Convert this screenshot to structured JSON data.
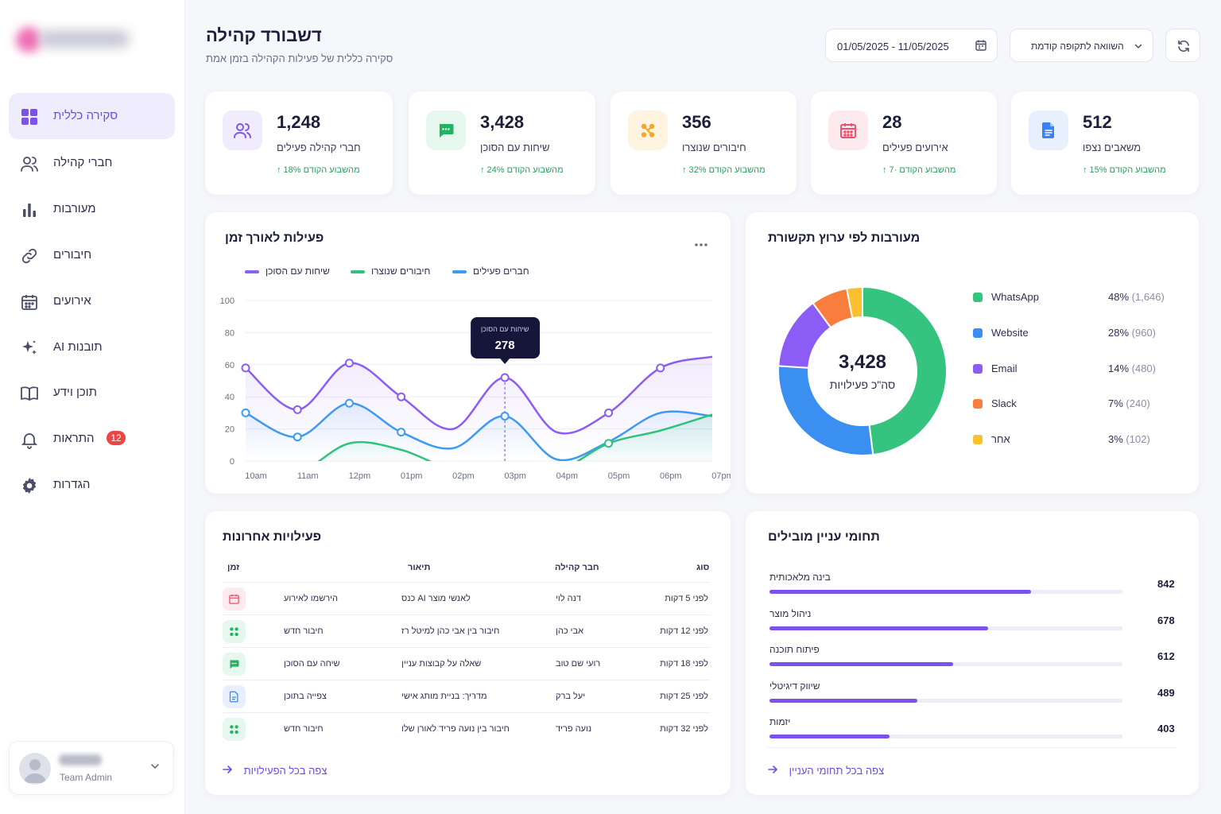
{
  "sidebar": {
    "items": [
      {
        "label": "סקירה כללית",
        "icon": "grid-icon",
        "active": true
      },
      {
        "label": "חברי קהילה",
        "icon": "users-icon"
      },
      {
        "label": "מעורבות",
        "icon": "bar-chart-icon"
      },
      {
        "label": "חיבורים",
        "icon": "link-icon"
      },
      {
        "label": "אירועים",
        "icon": "calendar-icon"
      },
      {
        "label": "AI תובנות",
        "icon": "sparkles-icon"
      },
      {
        "label": "תוכן וידע",
        "icon": "book-icon"
      },
      {
        "label": "התראות",
        "icon": "bell-icon",
        "badge": "12"
      },
      {
        "label": "הגדרות",
        "icon": "gear-icon"
      }
    ],
    "user": {
      "role": "Team Admin"
    }
  },
  "header": {
    "title": "דשבורד קהילה",
    "subtitle": "סקירה כללית של פעילות הקהילה בזמן אמת",
    "date_range": "01/05/2025 - 11/05/2025",
    "compare_label": "השוואה לתקופה קודמת"
  },
  "stats": [
    {
      "value": "1,248",
      "label": "חברי קהילה פעילים",
      "trend": "↑ 18% מהשבוע הקודם",
      "color": "#7c52ea",
      "bg": "#f0ebfe",
      "icon": "users-icon"
    },
    {
      "value": "3,428",
      "label": "שיחות עם הסוכן",
      "trend": "↑ 24% מהשבוע הקודם",
      "color": "#22b264",
      "bg": "#e6f7ee",
      "icon": "chat-icon"
    },
    {
      "value": "356",
      "label": "חיבורים שנוצרו",
      "trend": "↑ 32% מהשבוע הקודם",
      "color": "#f5a623",
      "bg": "#fff4e0",
      "icon": "connections-icon"
    },
    {
      "value": "28",
      "label": "אירועים פעילים",
      "trend": "↑ 7· מהשבוע הקודם",
      "color": "#ef4f6b",
      "bg": "#fdeaee",
      "icon": "calendar-icon"
    },
    {
      "value": "512",
      "label": "משאבים נצפו",
      "trend": "↑ 15% מהשבוע הקודם",
      "color": "#3b82f6",
      "bg": "#e8f0fe",
      "icon": "document-icon"
    }
  ],
  "activity": {
    "title": "פעילות לאורך זמן",
    "tooltip": {
      "label": "שיחות עם הסוכן",
      "value": "278"
    }
  },
  "chart_data": [
    {
      "type": "line",
      "title": "פעילות לאורך זמן",
      "x": [
        "10am",
        "11am",
        "12pm",
        "01pm",
        "02pm",
        "03pm",
        "04pm",
        "05pm",
        "06pm",
        "07pm"
      ],
      "y_ticks": [
        "0",
        "20",
        "40",
        "60",
        "80",
        "100"
      ],
      "ylim": [
        0,
        100
      ],
      "grid": true,
      "legend_position": "top",
      "series": [
        {
          "name": "שיחות עם הסוכן",
          "color": "#8b5cf6",
          "values": [
            58,
            32,
            61,
            40,
            20,
            52,
            18,
            30,
            58,
            65
          ]
        },
        {
          "name": "חיבורים שנוצרו",
          "color": "#2fc27a",
          "values": [
            -10,
            -8,
            11,
            7,
            -5,
            -3,
            -6,
            11,
            19,
            29
          ]
        },
        {
          "name": "חברים פעילים",
          "color": "#3b9cf2",
          "values": [
            30,
            15,
            36,
            18,
            8,
            28,
            1,
            12,
            30,
            28
          ]
        }
      ]
    },
    {
      "type": "pie",
      "title": "מעורבות לפי ערוץ תקשורת",
      "center_value": "3,428",
      "center_label": "סה\"כ פעילויות",
      "slices": [
        {
          "name": "WhatsApp",
          "pct": "48%",
          "count": "(1,646)",
          "value": 48,
          "color": "#34c47f"
        },
        {
          "name": "Website",
          "pct": "28%",
          "count": "(960)",
          "value": 28,
          "color": "#3b8ff0"
        },
        {
          "name": "Email",
          "pct": "14%",
          "count": "(480)",
          "value": 14,
          "color": "#8b5cf6"
        },
        {
          "name": "Slack",
          "pct": "7%",
          "count": "(240)",
          "value": 7,
          "color": "#f97d3c"
        },
        {
          "name": "אחר",
          "pct": "3%",
          "count": "(102)",
          "value": 3,
          "color": "#fbc02d"
        }
      ]
    }
  ],
  "recent": {
    "title": "פעילויות אחרונות",
    "headers": {
      "type": "סוג",
      "member": "חבר קהילה",
      "desc": "תיאור",
      "time": "זמן"
    },
    "rows": [
      {
        "time": "לפני 5 דקות",
        "member": "דנה לוי",
        "desc": "כנס AI לאנשי מוצר",
        "type": "הירשמו לאירוע",
        "icon": "calendar-icon",
        "color": "#ef4f6b",
        "bg": "#fdeaee"
      },
      {
        "time": "לפני 12 דקות",
        "member": "אבי כהן",
        "desc": "חיבור בין אבי כהן למיטל רז",
        "type": "חיבור חדש",
        "icon": "connections-icon",
        "color": "#22b264",
        "bg": "#e6f7ee"
      },
      {
        "time": "לפני 18 דקות",
        "member": "רועי שם טוב",
        "desc": "שאלה על קבוצות עניין",
        "type": "שיחה עם הסוכן",
        "icon": "chat-icon",
        "color": "#22b264",
        "bg": "#e6f7ee"
      },
      {
        "time": "לפני 25 דקות",
        "member": "יעל ברק",
        "desc": "מדריך: בניית מותג אישי",
        "type": "צפייה בתוכן",
        "icon": "document-icon",
        "color": "#3b82f6",
        "bg": "#e8f0fe"
      },
      {
        "time": "לפני 32 דקות",
        "member": "נועה פריד",
        "desc": "חיבור בין נועה פריד לאורן שלו",
        "type": "חיבור חדש",
        "icon": "connections-icon",
        "color": "#22b264",
        "bg": "#e6f7ee"
      }
    ],
    "link": "צפה בכל הפעילויות"
  },
  "interests": {
    "title": "תחומי עניין מובילים",
    "items": [
      {
        "label": "בינה מלאכותית",
        "value": "842",
        "fraction": 0.74
      },
      {
        "label": "ניהול מוצר",
        "value": "678",
        "fraction": 0.62
      },
      {
        "label": "פיתוח תוכנה",
        "value": "612",
        "fraction": 0.52
      },
      {
        "label": "שיווק דיגיטלי",
        "value": "489",
        "fraction": 0.42
      },
      {
        "label": "יזמות",
        "value": "403",
        "fraction": 0.34
      }
    ],
    "link": "צפה בכל תחומי העניין"
  }
}
